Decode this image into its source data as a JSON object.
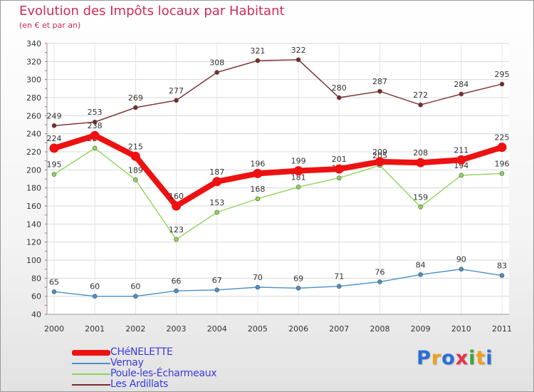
{
  "header": {
    "title": "Evolution des Impôts locaux par Habitant",
    "subtitle": "(en € et par an)"
  },
  "chart_data": {
    "type": "line",
    "title": "Evolution des Impôts locaux par Habitant",
    "subtitle": "(en € et par an)",
    "xlabel": "",
    "ylabel": "",
    "categories": [
      "2000",
      "2001",
      "2002",
      "2003",
      "2004",
      "2005",
      "2006",
      "2007",
      "2008",
      "2009",
      "2010",
      "2011"
    ],
    "ylim": [
      40,
      340
    ],
    "yticks": [
      40,
      60,
      80,
      100,
      120,
      140,
      160,
      180,
      200,
      220,
      240,
      260,
      280,
      300,
      320,
      340
    ],
    "grid": true,
    "legend_position": "bottom-left",
    "series": [
      {
        "name": "Les Ardillats",
        "color": "#7a2a2a",
        "values": [
          249,
          253,
          269,
          277,
          308,
          321,
          322,
          280,
          287,
          272,
          284,
          295
        ]
      },
      {
        "name": "Poule-les-Écharmeaux",
        "color": "#8ed45a",
        "values": [
          195,
          224,
          189,
          123,
          153,
          168,
          181,
          191,
          205,
          159,
          194,
          196
        ]
      },
      {
        "name": "Vernay",
        "color": "#4a90c8",
        "values": [
          65,
          60,
          60,
          66,
          67,
          70,
          69,
          71,
          76,
          84,
          90,
          83
        ]
      },
      {
        "name": "CHéNELETTE",
        "color": "#ee1111",
        "values": [
          224,
          238,
          215,
          160,
          187,
          196,
          199,
          201,
          209,
          208,
          211,
          225
        ]
      }
    ]
  },
  "legend": [
    {
      "name": "CHéNELETTE",
      "color": "#ee1111"
    },
    {
      "name": "Vernay",
      "color": "#4a90c8"
    },
    {
      "name": "Poule-les-Écharmeaux",
      "color": "#8ed45a"
    },
    {
      "name": "Les Ardillats",
      "color": "#7a2a2a"
    }
  ],
  "logo": {
    "letters": [
      "P",
      "r",
      "o",
      "x",
      "i",
      "t",
      "i"
    ],
    "colors": [
      "#2a6fd6",
      "#f0a020",
      "#2a6fd6",
      "#e8304a",
      "#3aa83a",
      "#f0a020",
      "#2a6fd6"
    ]
  }
}
